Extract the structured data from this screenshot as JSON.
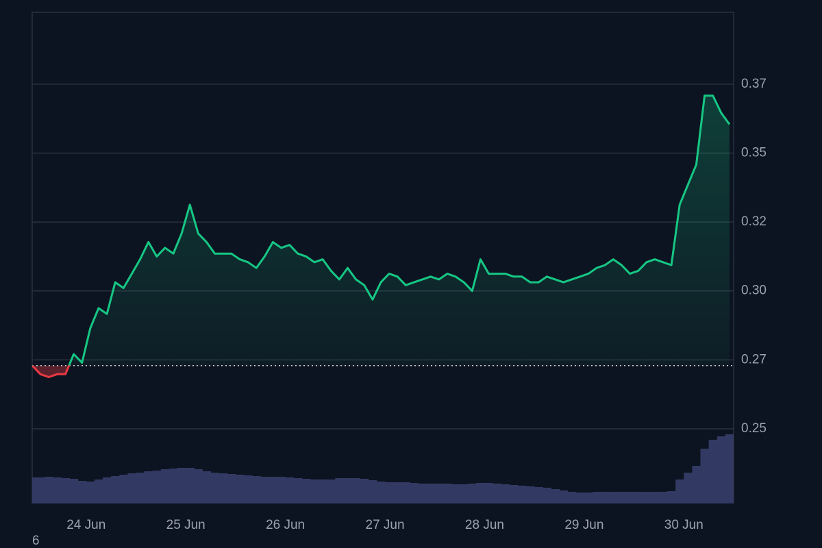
{
  "chart_data": {
    "type": "area-line",
    "x": [
      0,
      2,
      4,
      6,
      8,
      10,
      12,
      14,
      16,
      18,
      20,
      22,
      24,
      26,
      28,
      30,
      32,
      34,
      36,
      38,
      40,
      42,
      44,
      46,
      48,
      50,
      52,
      54,
      56,
      58,
      60,
      62,
      64,
      66,
      68,
      70,
      72,
      74,
      76,
      78,
      80,
      82,
      84,
      86,
      88,
      90,
      92,
      94,
      96,
      98,
      100,
      102,
      104,
      106,
      108,
      110,
      112,
      114,
      116,
      118,
      120,
      122,
      124,
      126,
      128,
      130,
      132,
      134,
      136,
      138,
      140,
      142,
      144,
      146,
      148,
      150,
      152,
      154,
      156,
      158,
      160,
      162,
      164,
      166,
      168
    ],
    "series": [
      {
        "color": "#16c784",
        "values": [
          0.272,
          0.269,
          0.268,
          0.269,
          0.269,
          0.276,
          0.273,
          0.285,
          0.292,
          0.29,
          0.301,
          0.299,
          0.304,
          0.309,
          0.315,
          0.31,
          0.313,
          0.311,
          0.318,
          0.328,
          0.318,
          0.315,
          0.311,
          0.311,
          0.311,
          0.309,
          0.308,
          0.306,
          0.31,
          0.315,
          0.313,
          0.314,
          0.311,
          0.31,
          0.308,
          0.309,
          0.305,
          0.302,
          0.306,
          0.302,
          0.3,
          0.295,
          0.301,
          0.304,
          0.303,
          0.3,
          0.301,
          0.302,
          0.303,
          0.302,
          0.304,
          0.303,
          0.301,
          0.298,
          0.309,
          0.304,
          0.304,
          0.304,
          0.303,
          0.303,
          0.301,
          0.301,
          0.303,
          0.302,
          0.301,
          0.302,
          0.303,
          0.304,
          0.306,
          0.307,
          0.309,
          0.307,
          0.304,
          0.305,
          0.308,
          0.309,
          0.308,
          0.307,
          0.328,
          0.335,
          0.342,
          0.366,
          0.366,
          0.36,
          0.356
        ]
      },
      {
        "color": "#323a63",
        "axis": "y2",
        "values": [
          38,
          38,
          39,
          38,
          37,
          36,
          33,
          32,
          35,
          38,
          40,
          42,
          44,
          45,
          47,
          48,
          50,
          51,
          52,
          52,
          50,
          47,
          45,
          44,
          43,
          42,
          41,
          40,
          39,
          39,
          39,
          38,
          37,
          36,
          35,
          35,
          35,
          37,
          37,
          37,
          36,
          34,
          32,
          31,
          31,
          31,
          30,
          29,
          29,
          29,
          29,
          28,
          28,
          29,
          30,
          30,
          29,
          28,
          27,
          26,
          25,
          24,
          23,
          21,
          19,
          17,
          16,
          16,
          17,
          17,
          17,
          17,
          17,
          17,
          17,
          17,
          17,
          18,
          35,
          45,
          55,
          80,
          93,
          98,
          101
        ]
      }
    ],
    "down_color": "#ea3943",
    "baseline": 0.272,
    "xlim": [
      0,
      169
    ],
    "xticks": [
      {
        "value": 13,
        "label": "24 Jun"
      },
      {
        "value": 37,
        "label": "25 Jun"
      },
      {
        "value": 61,
        "label": "26 Jun"
      },
      {
        "value": 85,
        "label": "27 Jun"
      },
      {
        "value": 109,
        "label": "28 Jun"
      },
      {
        "value": 133,
        "label": "29 Jun"
      },
      {
        "value": 157,
        "label": "30 Jun"
      }
    ],
    "ylim": [
      0.224,
      0.395
    ],
    "yticks": [
      0.25,
      {
        "value": 0.274,
        "label": "0.27"
      },
      {
        "value": 0.298,
        "label": "0.30"
      },
      {
        "value": 0.322,
        "label": "0.32"
      },
      {
        "value": 0.346,
        "label": "0.35"
      },
      0.37
    ],
    "y2lim": [
      0,
      717
    ],
    "grid": true,
    "footnote": "6"
  }
}
